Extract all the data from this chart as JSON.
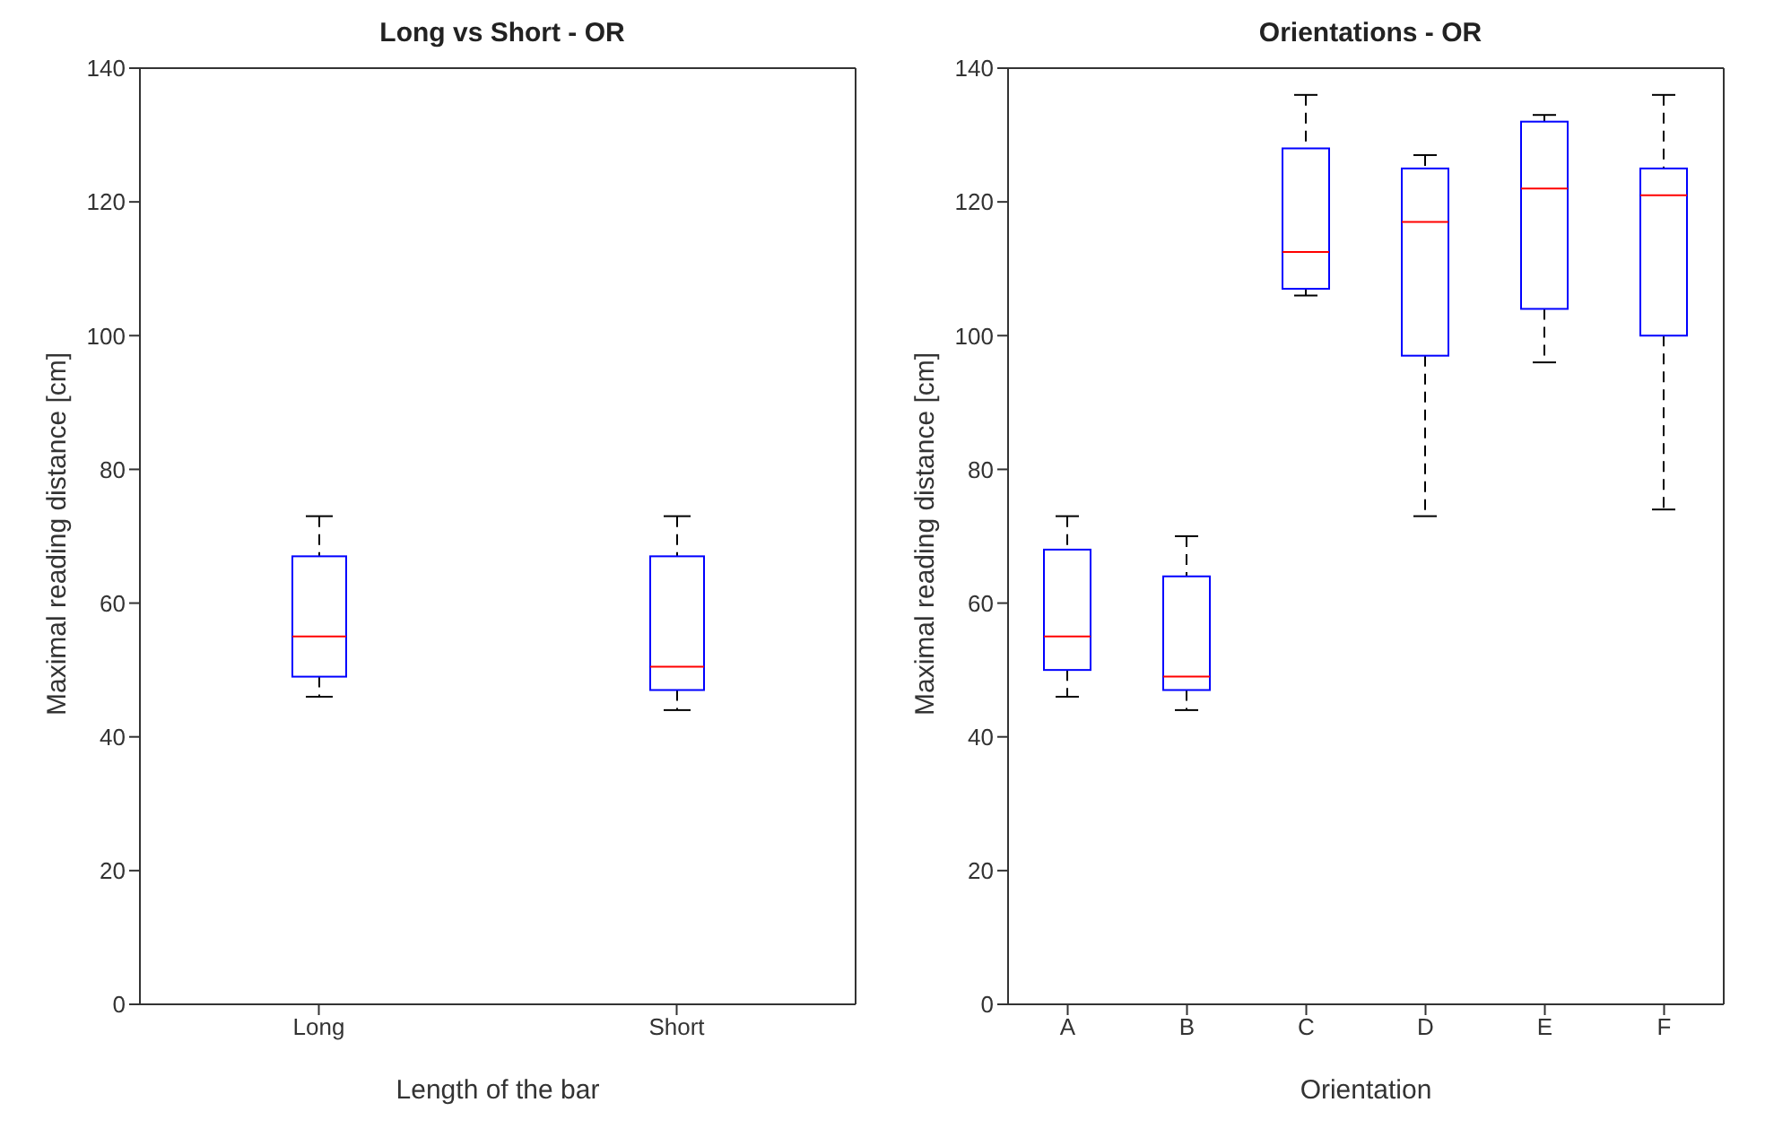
{
  "chart_data": [
    {
      "type": "box",
      "title": "Long vs Short - OR",
      "xlabel": "Length of the bar",
      "ylabel": "Maximal reading distance [cm]",
      "categories": [
        "Long",
        "Short"
      ],
      "ylim": [
        0,
        140
      ],
      "yticks": [
        0,
        20,
        40,
        60,
        80,
        100,
        120,
        140
      ],
      "grid": false,
      "series": [
        {
          "color": "#0000ff",
          "boxes": [
            {
              "low": 46,
              "q1": 49,
              "median": 55,
              "q3": 67,
              "high": 73
            },
            {
              "low": 44,
              "q1": 47,
              "median": 50.5,
              "q3": 67,
              "high": 73
            }
          ]
        }
      ]
    },
    {
      "type": "box",
      "title": "Orientations - OR",
      "xlabel": "Orientation",
      "ylabel": "Maximal reading distance [cm]",
      "categories": [
        "A",
        "B",
        "C",
        "D",
        "E",
        "F"
      ],
      "ylim": [
        0,
        140
      ],
      "yticks": [
        0,
        20,
        40,
        60,
        80,
        100,
        120,
        140
      ],
      "grid": false,
      "series": [
        {
          "color": "#0000ff",
          "boxes": [
            {
              "low": 46,
              "q1": 50,
              "median": 55,
              "q3": 68,
              "high": 73
            },
            {
              "low": 44,
              "q1": 47,
              "median": 49,
              "q3": 64,
              "high": 70
            },
            {
              "low": 106,
              "q1": 107,
              "median": 112.5,
              "q3": 128,
              "high": 136
            },
            {
              "low": 73,
              "q1": 97,
              "median": 117,
              "q3": 125,
              "high": 127
            },
            {
              "low": 96,
              "q1": 104,
              "median": 122,
              "q3": 132,
              "high": 133
            },
            {
              "low": 74,
              "q1": 100,
              "median": 121,
              "q3": 125,
              "high": 136
            }
          ]
        }
      ]
    }
  ]
}
